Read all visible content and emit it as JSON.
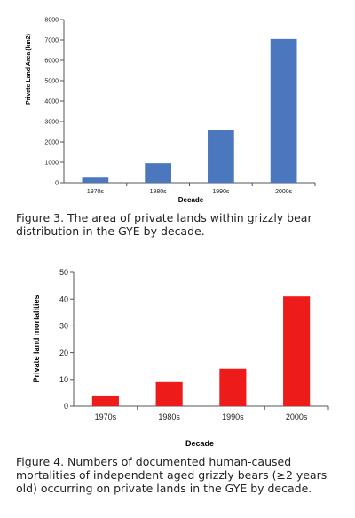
{
  "chart_data": [
    {
      "type": "bar",
      "categories": [
        "1970s",
        "1980s",
        "1990s",
        "2000s"
      ],
      "values": [
        250,
        950,
        2600,
        7050
      ],
      "xlabel": "Decade",
      "ylabel": "Private Land Area (km2)",
      "ylim": [
        0,
        8000
      ],
      "yticks": [
        0,
        1000,
        2000,
        3000,
        4000,
        5000,
        6000,
        7000,
        8000
      ],
      "bar_color": "#4a77be",
      "grid": false,
      "legend": "none"
    },
    {
      "type": "bar",
      "categories": [
        "1970s",
        "1980s",
        "1990s",
        "2000s"
      ],
      "values": [
        4,
        9,
        14,
        41
      ],
      "xlabel": "Decade",
      "ylabel": "Private land mortalities",
      "ylim": [
        0,
        50
      ],
      "yticks": [
        0,
        10,
        20,
        30,
        40,
        50
      ],
      "bar_color": "#ee1b1b",
      "grid": false,
      "legend": "none"
    }
  ],
  "captions": [
    "Figure 3.  The area of private lands within grizzly bear distribution in the GYE by decade.",
    "Figure 4.  Numbers of documented human-caused mortalities of independent aged grizzly bears (≥2 years old) occurring on private lands in the GYE by decade."
  ]
}
